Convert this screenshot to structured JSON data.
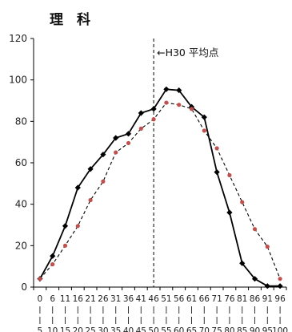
{
  "chart_data": {
    "type": "line",
    "title": "理　科",
    "xlabel": "",
    "ylabel": "",
    "ylim": [
      0,
      120
    ],
    "yticks": [
      0,
      20,
      40,
      60,
      80,
      100,
      120
    ],
    "categories": [
      "0",
      "6",
      "11",
      "16",
      "21",
      "26",
      "31",
      "36",
      "41",
      "46",
      "51",
      "56",
      "61",
      "66",
      "71",
      "76",
      "81",
      "86",
      "91",
      "96"
    ],
    "categories_end": [
      "5",
      "10",
      "15",
      "20",
      "25",
      "30",
      "35",
      "40",
      "45",
      "50",
      "55",
      "60",
      "65",
      "70",
      "75",
      "80",
      "85",
      "90",
      "95",
      "100"
    ],
    "series": [
      {
        "values": [
          4,
          15,
          29.5,
          48,
          57,
          64,
          72,
          74,
          84,
          86,
          95.5,
          95,
          87,
          82,
          55.5,
          36,
          11.5,
          4,
          0.5,
          0.5
        ],
        "color": "#000000",
        "style": "solid",
        "marker": "diamond"
      },
      {
        "values": [
          4,
          11,
          20,
          29.5,
          42,
          51,
          65,
          69.5,
          76.5,
          81,
          89,
          88,
          86,
          75.5,
          67,
          54,
          41,
          28,
          19.5,
          4
        ],
        "color": "#c0504d",
        "style": "dashed",
        "marker": "circle"
      }
    ],
    "annotation": {
      "text": "←H30 平均点",
      "x_category": "46"
    },
    "grid": false
  }
}
